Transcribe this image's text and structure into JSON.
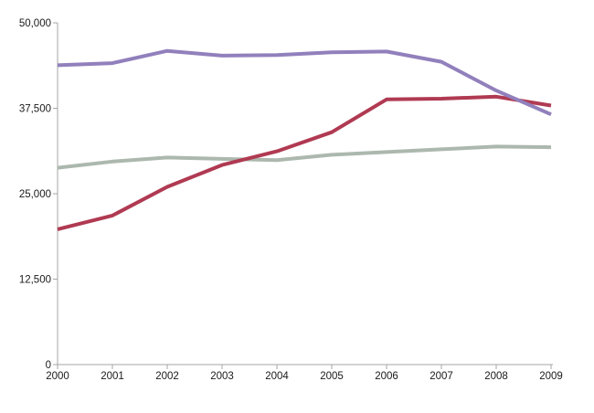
{
  "chart_data": {
    "type": "line",
    "title": "",
    "xlabel": "",
    "ylabel": "",
    "x": [
      2000,
      2001,
      2002,
      2003,
      2004,
      2005,
      2006,
      2007,
      2008,
      2009
    ],
    "x_tick_labels": [
      "2000",
      "2001",
      "2002",
      "2003",
      "2004",
      "2005",
      "2006",
      "2007",
      "2008",
      "2009"
    ],
    "ylim": [
      0,
      50000
    ],
    "yticks": [
      0,
      12500,
      25000,
      37500,
      50000
    ],
    "ytick_labels": [
      "0",
      "12,500",
      "25,000",
      "37,500",
      "50,000"
    ],
    "grid": false,
    "legend": "none",
    "axis_color": "#A6A6A6",
    "tick_label_color": "#1A1A1A",
    "line_width": 4,
    "series": [
      {
        "name": "gray-green-series",
        "color": "#ACB8AE",
        "values": [
          28800,
          29700,
          30300,
          30100,
          29900,
          30700,
          31100,
          31500,
          31900,
          31800
        ]
      },
      {
        "name": "red-series",
        "color": "#B03A52",
        "values": [
          19800,
          21800,
          26000,
          29200,
          31200,
          34000,
          38800,
          38900,
          39200,
          37900
        ]
      },
      {
        "name": "purple-series",
        "color": "#9180BC",
        "values": [
          43800,
          44100,
          45900,
          45200,
          45300,
          45700,
          45800,
          44300,
          40100,
          36600
        ]
      }
    ]
  }
}
